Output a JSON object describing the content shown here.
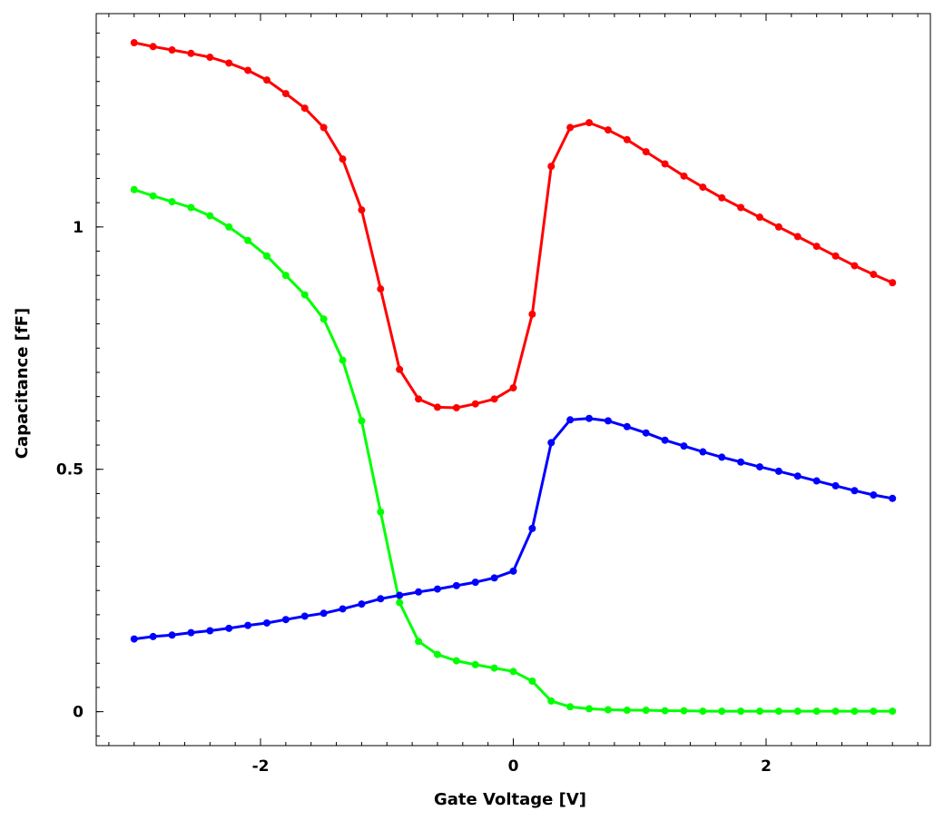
{
  "chart_data": {
    "type": "line",
    "title": "",
    "xlabel": "Gate Voltage [V]",
    "ylabel": "Capacitance [fF]",
    "xlim": [
      -3.3,
      3.3
    ],
    "ylim": [
      -0.07,
      1.44
    ],
    "x_ticks": [
      -2,
      0,
      2
    ],
    "x_tick_labels": [
      "-2",
      "0",
      "2"
    ],
    "y_ticks": [
      0,
      0.5,
      1
    ],
    "y_tick_labels": [
      "0",
      "0.5",
      "1"
    ],
    "grid": false,
    "legend": "none",
    "x": [
      -3.0,
      -2.85,
      -2.7,
      -2.55,
      -2.4,
      -2.25,
      -2.1,
      -1.95,
      -1.8,
      -1.65,
      -1.5,
      -1.35,
      -1.2,
      -1.05,
      -0.9,
      -0.75,
      -0.6,
      -0.45,
      -0.3,
      -0.15,
      0.0,
      0.15,
      0.3,
      0.45,
      0.6,
      0.75,
      0.9,
      1.05,
      1.2,
      1.35,
      1.5,
      1.65,
      1.8,
      1.95,
      2.1,
      2.25,
      2.4,
      2.55,
      2.7,
      2.85,
      3.0
    ],
    "series": [
      {
        "color": "#ff0000",
        "values": [
          1.38,
          1.372,
          1.365,
          1.358,
          1.35,
          1.338,
          1.323,
          1.303,
          1.275,
          1.245,
          1.205,
          1.14,
          1.035,
          0.872,
          0.706,
          0.645,
          0.628,
          0.627,
          0.635,
          0.645,
          0.668,
          0.82,
          1.125,
          1.205,
          1.215,
          1.2,
          1.18,
          1.155,
          1.13,
          1.105,
          1.082,
          1.06,
          1.04,
          1.02,
          1.0,
          0.98,
          0.96,
          0.94,
          0.92,
          0.902,
          0.885
        ]
      },
      {
        "color": "#00ff00",
        "values": [
          1.077,
          1.064,
          1.052,
          1.04,
          1.023,
          1.0,
          0.972,
          0.94,
          0.9,
          0.86,
          0.81,
          0.725,
          0.6,
          0.412,
          0.225,
          0.145,
          0.118,
          0.105,
          0.097,
          0.09,
          0.083,
          0.063,
          0.022,
          0.01,
          0.006,
          0.004,
          0.003,
          0.003,
          0.002,
          0.002,
          0.001,
          0.001,
          0.001,
          0.001,
          0.001,
          0.001,
          0.001,
          0.001,
          0.001,
          0.001,
          0.001
        ]
      },
      {
        "color": "#0000ff",
        "values": [
          0.15,
          0.155,
          0.158,
          0.163,
          0.167,
          0.172,
          0.178,
          0.183,
          0.19,
          0.197,
          0.203,
          0.212,
          0.222,
          0.233,
          0.24,
          0.247,
          0.253,
          0.26,
          0.267,
          0.276,
          0.29,
          0.378,
          0.555,
          0.602,
          0.605,
          0.6,
          0.588,
          0.575,
          0.56,
          0.548,
          0.536,
          0.525,
          0.515,
          0.505,
          0.496,
          0.486,
          0.476,
          0.466,
          0.456,
          0.447,
          0.44
        ]
      }
    ]
  }
}
